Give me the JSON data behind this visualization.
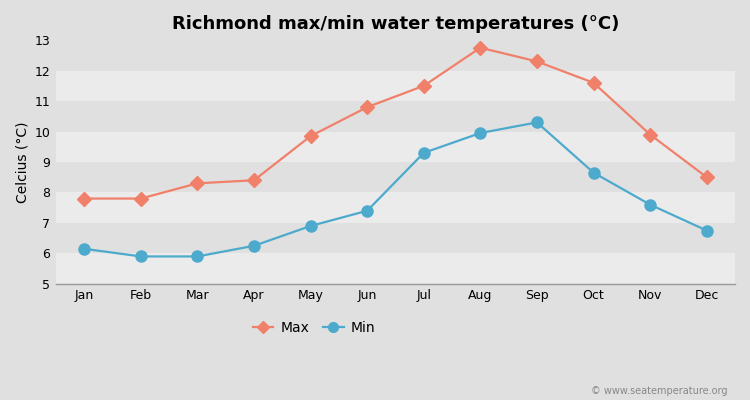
{
  "title": "Richmond max/min water temperatures (°C)",
  "ylabel": "Celcius (°C)",
  "months": [
    "Jan",
    "Feb",
    "Mar",
    "Apr",
    "May",
    "Jun",
    "Jul",
    "Aug",
    "Sep",
    "Oct",
    "Nov",
    "Dec"
  ],
  "max_values": [
    7.8,
    7.8,
    8.3,
    8.4,
    9.85,
    10.8,
    11.5,
    12.75,
    12.3,
    11.6,
    9.9,
    8.5
  ],
  "min_values": [
    6.15,
    5.9,
    5.9,
    6.25,
    6.9,
    7.4,
    9.3,
    9.95,
    10.3,
    8.65,
    7.6,
    6.75
  ],
  "max_color": "#f0806a",
  "min_color": "#4daacc",
  "fig_bg_color": "#e0e0e0",
  "plot_bg_color": "#f0f0f0",
  "band_color_light": "#ebebeb",
  "band_color_dark": "#e0e0e0",
  "ylim": [
    5,
    13
  ],
  "yticks": [
    5,
    6,
    7,
    8,
    9,
    10,
    11,
    12,
    13
  ],
  "legend_max_label": "Max",
  "legend_min_label": "Min",
  "watermark": "© www.seatemperature.org",
  "title_fontsize": 13,
  "label_fontsize": 10,
  "tick_fontsize": 9,
  "marker_size_max": 7,
  "marker_size_min": 8,
  "line_width": 1.6
}
